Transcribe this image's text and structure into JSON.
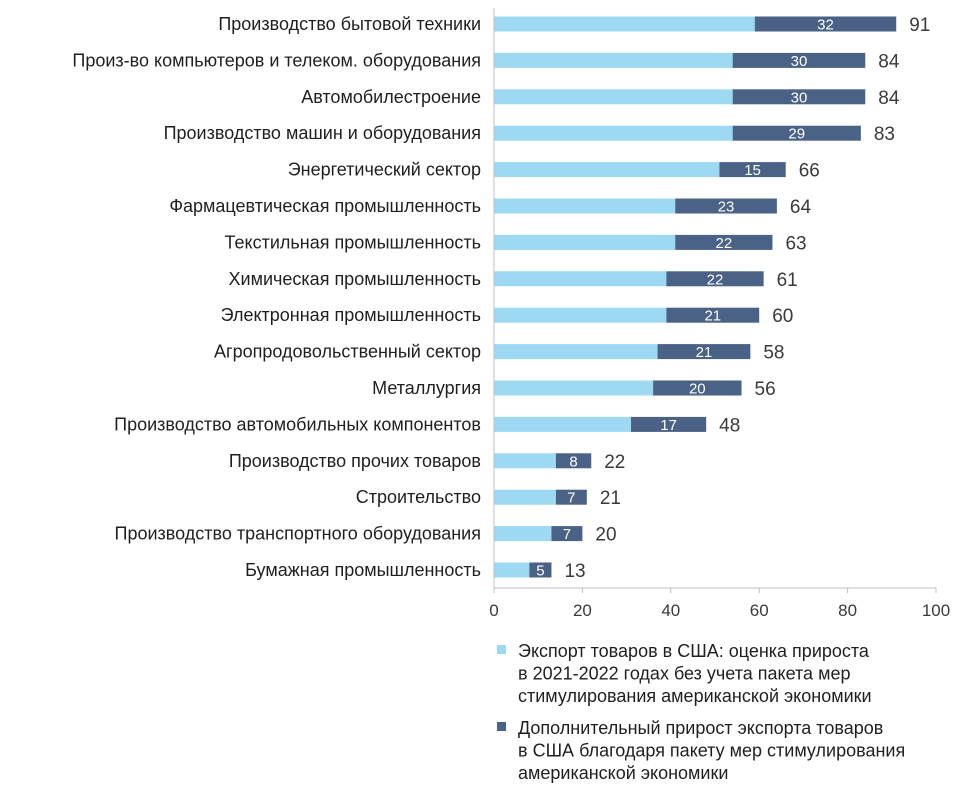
{
  "chart_data": {
    "type": "bar",
    "orientation": "horizontal",
    "stacked": true,
    "categories": [
      "Производство бытовой техники",
      "Произ-во компьютеров и телеком. оборудования",
      "Автомобилестроение",
      "Производство машин и оборудования",
      "Энергетический сектор",
      "Фармацевтическая промышленность",
      "Текстильная промышленность",
      "Химическая промышленность",
      "Электронная промышленность",
      "Агропродовольственный сектор",
      "Металлургия",
      "Производство автомобильных компонентов",
      "Производство прочих товаров",
      "Строительство",
      "Производство транспортного оборудования",
      "Бумажная промышленность"
    ],
    "series": [
      {
        "name": "Экспорт товаров в США: оценка прироста в 2021-2022 годах без учета пакета мер стимулирования американской экономики",
        "name_lines": [
          "Экспорт товаров в США: оценка прироста",
          "в 2021-2022 годах без учета пакета мер",
          "стимулирования американской экономики"
        ],
        "color": "#9dd9f3",
        "values": [
          59,
          54,
          54,
          54,
          51,
          41,
          41,
          39,
          39,
          37,
          36,
          31,
          14,
          14,
          13,
          8
        ]
      },
      {
        "name": "Дополнительный прирост экспорта товаров в США благодаря пакету мер стимулирования американской экономики",
        "name_lines": [
          "Дополнительный прирост экспорта товаров",
          "в США благодаря пакету мер стимулирования",
          "американской экономики"
        ],
        "color": "#4a6286",
        "values": [
          32,
          30,
          30,
          29,
          15,
          23,
          22,
          22,
          21,
          21,
          20,
          17,
          8,
          7,
          7,
          5
        ]
      }
    ],
    "totals": [
      91,
      84,
      84,
      83,
      66,
      64,
      63,
      61,
      60,
      58,
      56,
      48,
      22,
      21,
      20,
      13
    ],
    "xlim": [
      0,
      100
    ],
    "xticks": [
      0,
      20,
      40,
      60,
      80,
      100
    ],
    "title": "",
    "xlabel": "",
    "ylabel": "",
    "grid": false,
    "legend_position": "bottom-right"
  }
}
